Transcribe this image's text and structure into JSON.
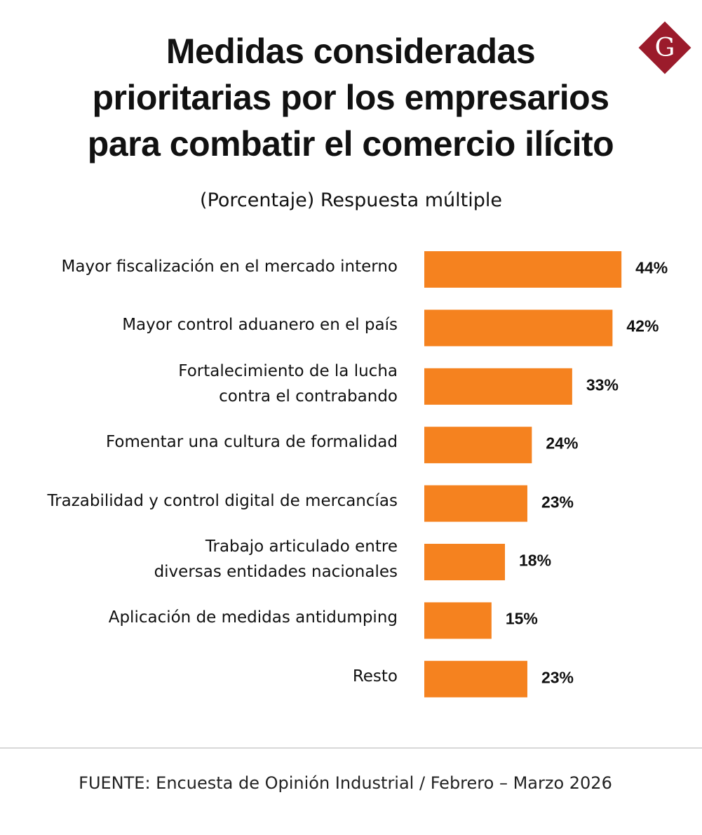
{
  "logo": "G",
  "chart_data": {
    "type": "barh",
    "title": "Medidas consideradas\nprioritarias por los empresarios\npara combatir el comercio ilícito",
    "subtitle": "(Porcentaje) Respuesta múltiple",
    "categories": [
      "Mayor fiscalización en el mercado interno",
      "Mayor control aduanero en el país",
      "Fortalecimiento de la lucha\ncontra el contrabando",
      "Fomentar una cultura de formalidad",
      "Trazabilidad y control digital de mercancías",
      "Trabajo articulado entre\ndiversas entidades nacionales",
      "Aplicación de medidas antidumping",
      "Resto"
    ],
    "values": [
      44,
      42,
      33,
      24,
      23,
      18,
      15,
      23
    ],
    "value_labels": [
      "44%",
      "42%",
      "33%",
      "24%",
      "23%",
      "18%",
      "15%",
      "23%"
    ],
    "color": "#f5821f",
    "source": "FUENTE: Encuesta de Opinión Industrial / Febrero – Marzo 2026"
  }
}
